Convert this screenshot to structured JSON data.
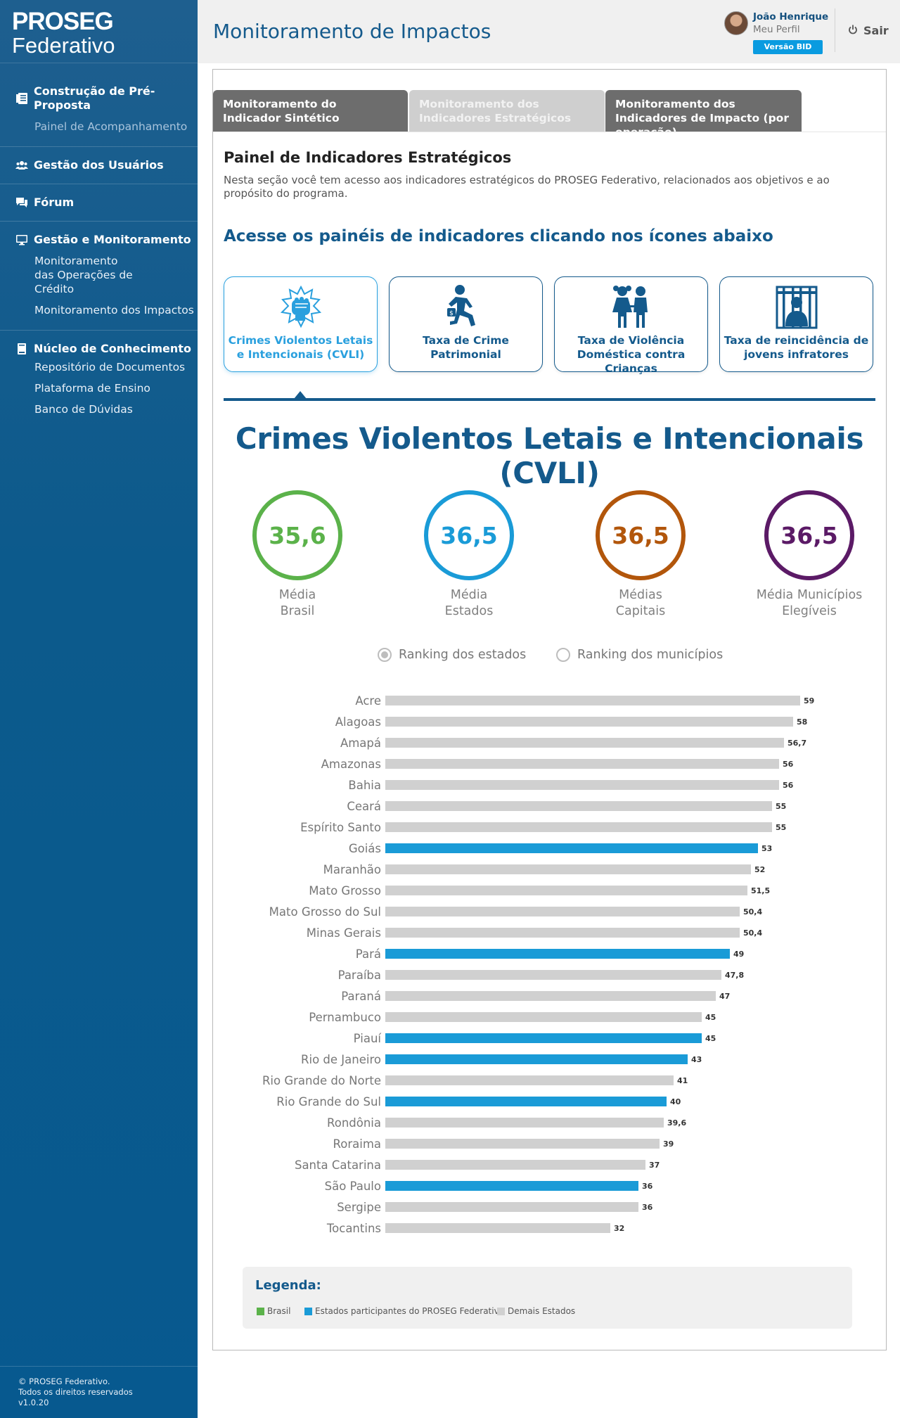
{
  "sidebar": {
    "logo_line1": "PROSEG",
    "logo_line2": "Federativo",
    "sections": [
      {
        "title": "Construção de Pré-Proposta",
        "icon": "document-list-icon",
        "items": [
          "Painel de Acompanhamento"
        ]
      },
      {
        "title": "Gestão dos Usuários",
        "icon": "users-icon",
        "items": []
      },
      {
        "title": "Fórum",
        "icon": "chat-bubbles-icon",
        "items": []
      },
      {
        "title": "Gestão e Monitoramento",
        "icon": "monitor-icon",
        "items": [
          "Monitoramento das Operações de Crédito",
          "Monitoramento dos Impactos"
        ]
      },
      {
        "title": "Núcleo de Conhecimento",
        "icon": "book-icon",
        "items": [
          "Repositório de Documentos",
          "Plataforma de Ensino",
          "Banco de Dúvidas"
        ]
      }
    ],
    "footer_line1": "© PROSEG Federativo.",
    "footer_line2": "Todos os direitos reservados",
    "footer_version": "v1.0.20"
  },
  "header": {
    "title": "Monitoramento de Impactos",
    "user_name": "João Henrique",
    "user_profile": "Meu Perfil",
    "badge": "Versão BID",
    "logout": "Sair"
  },
  "tabs": [
    {
      "label": "Monitoramento do Indicador Sintético",
      "active": false
    },
    {
      "label": "Monitoramento dos Indicadores Estratégicos",
      "active": true
    },
    {
      "label": "Monitoramento dos Indicadores de Impacto (por operação)",
      "active": false
    }
  ],
  "panel": {
    "title": "Painel de Indicadores Estratégicos",
    "description": "Nesta seção você tem acesso aos indicadores estratégicos do PROSEG Federativo, relacionados aos objetivos e ao propósito do programa.",
    "subtitle": "Acesse os painéis de indicadores clicando nos ícones abaixo"
  },
  "cards": [
    {
      "label": "Crimes Violentos Letais e Intencionais (CVLI)",
      "icon": "fist-impact-icon",
      "active": true
    },
    {
      "label": "Taxa de Crime Patrimonial",
      "icon": "thief-running-icon",
      "active": false
    },
    {
      "label": "Taxa de Violência Doméstica contra Crianças",
      "icon": "children-icon",
      "active": false
    },
    {
      "label": "Taxa de reincidência de jovens infratores",
      "icon": "prisoner-bars-icon",
      "active": false
    }
  ],
  "indicator_title": "Crimes Violentos Letais e Intencionais (CVLI)",
  "metrics": [
    {
      "value": "35,6",
      "label1": "Média",
      "label2": "Brasil",
      "color": "#5bb24a"
    },
    {
      "value": "36,5",
      "label1": "Média",
      "label2": "Estados",
      "color": "#1a9bd7"
    },
    {
      "value": "36,5",
      "label1": "Médias",
      "label2": "Capitais",
      "color": "#b2560b"
    },
    {
      "value": "36,5",
      "label1": "Média Municípios",
      "label2": "Elegíveis",
      "color": "#5b1a66"
    }
  ],
  "ranking": {
    "option_states": "Ranking dos estados",
    "option_municipalities": "Ranking dos municípios",
    "selected": "states"
  },
  "chart_data": {
    "type": "bar",
    "orientation": "horizontal",
    "categories": [
      "Acre",
      "Alagoas",
      "Amapá",
      "Amazonas",
      "Bahia",
      "Ceará",
      "Espírito Santo",
      "Goiás",
      "Maranhão",
      "Mato Grosso",
      "Mato Grosso do Sul",
      "Minas Gerais",
      "Pará",
      "Paraíba",
      "Paraná",
      "Pernambuco",
      "Piauí",
      "Rio de Janeiro",
      "Rio Grande do Norte",
      "Rio Grande do Sul",
      "Rondônia",
      "Roraima",
      "Santa Catarina",
      "São Paulo",
      "Sergipe",
      "Tocantins"
    ],
    "values": [
      59,
      58,
      56.7,
      56,
      56,
      55,
      55,
      53,
      52,
      51.5,
      50.4,
      50.4,
      49,
      47.8,
      47,
      45,
      45,
      43,
      41,
      40,
      39.6,
      39,
      37,
      36,
      36,
      32
    ],
    "value_labels": [
      "59",
      "58",
      "56,7",
      "56",
      "56",
      "55",
      "55",
      "53",
      "52",
      "51,5",
      "50,4",
      "50,4",
      "49",
      "47,8",
      "47",
      "45",
      "45",
      "43",
      "41",
      "40",
      "39,6",
      "39",
      "37",
      "36",
      "36",
      "32"
    ],
    "participants": [
      "Goiás",
      "Pará",
      "Piauí",
      "Rio de Janeiro",
      "Rio Grande do Sul",
      "São Paulo"
    ],
    "xlim": [
      0,
      59
    ],
    "colors": {
      "participant": "#1a9bd7",
      "other": "#d0d0d0",
      "brasil": "#5bb24a"
    }
  },
  "legend": {
    "title": "Legenda:",
    "items": [
      {
        "label": "Brasil",
        "color": "#5bb24a"
      },
      {
        "label": "Estados participantes do PROSEG Federativo",
        "color": "#1a9bd7"
      },
      {
        "label": "Demais Estados",
        "color": "#d0d0d0"
      }
    ]
  }
}
